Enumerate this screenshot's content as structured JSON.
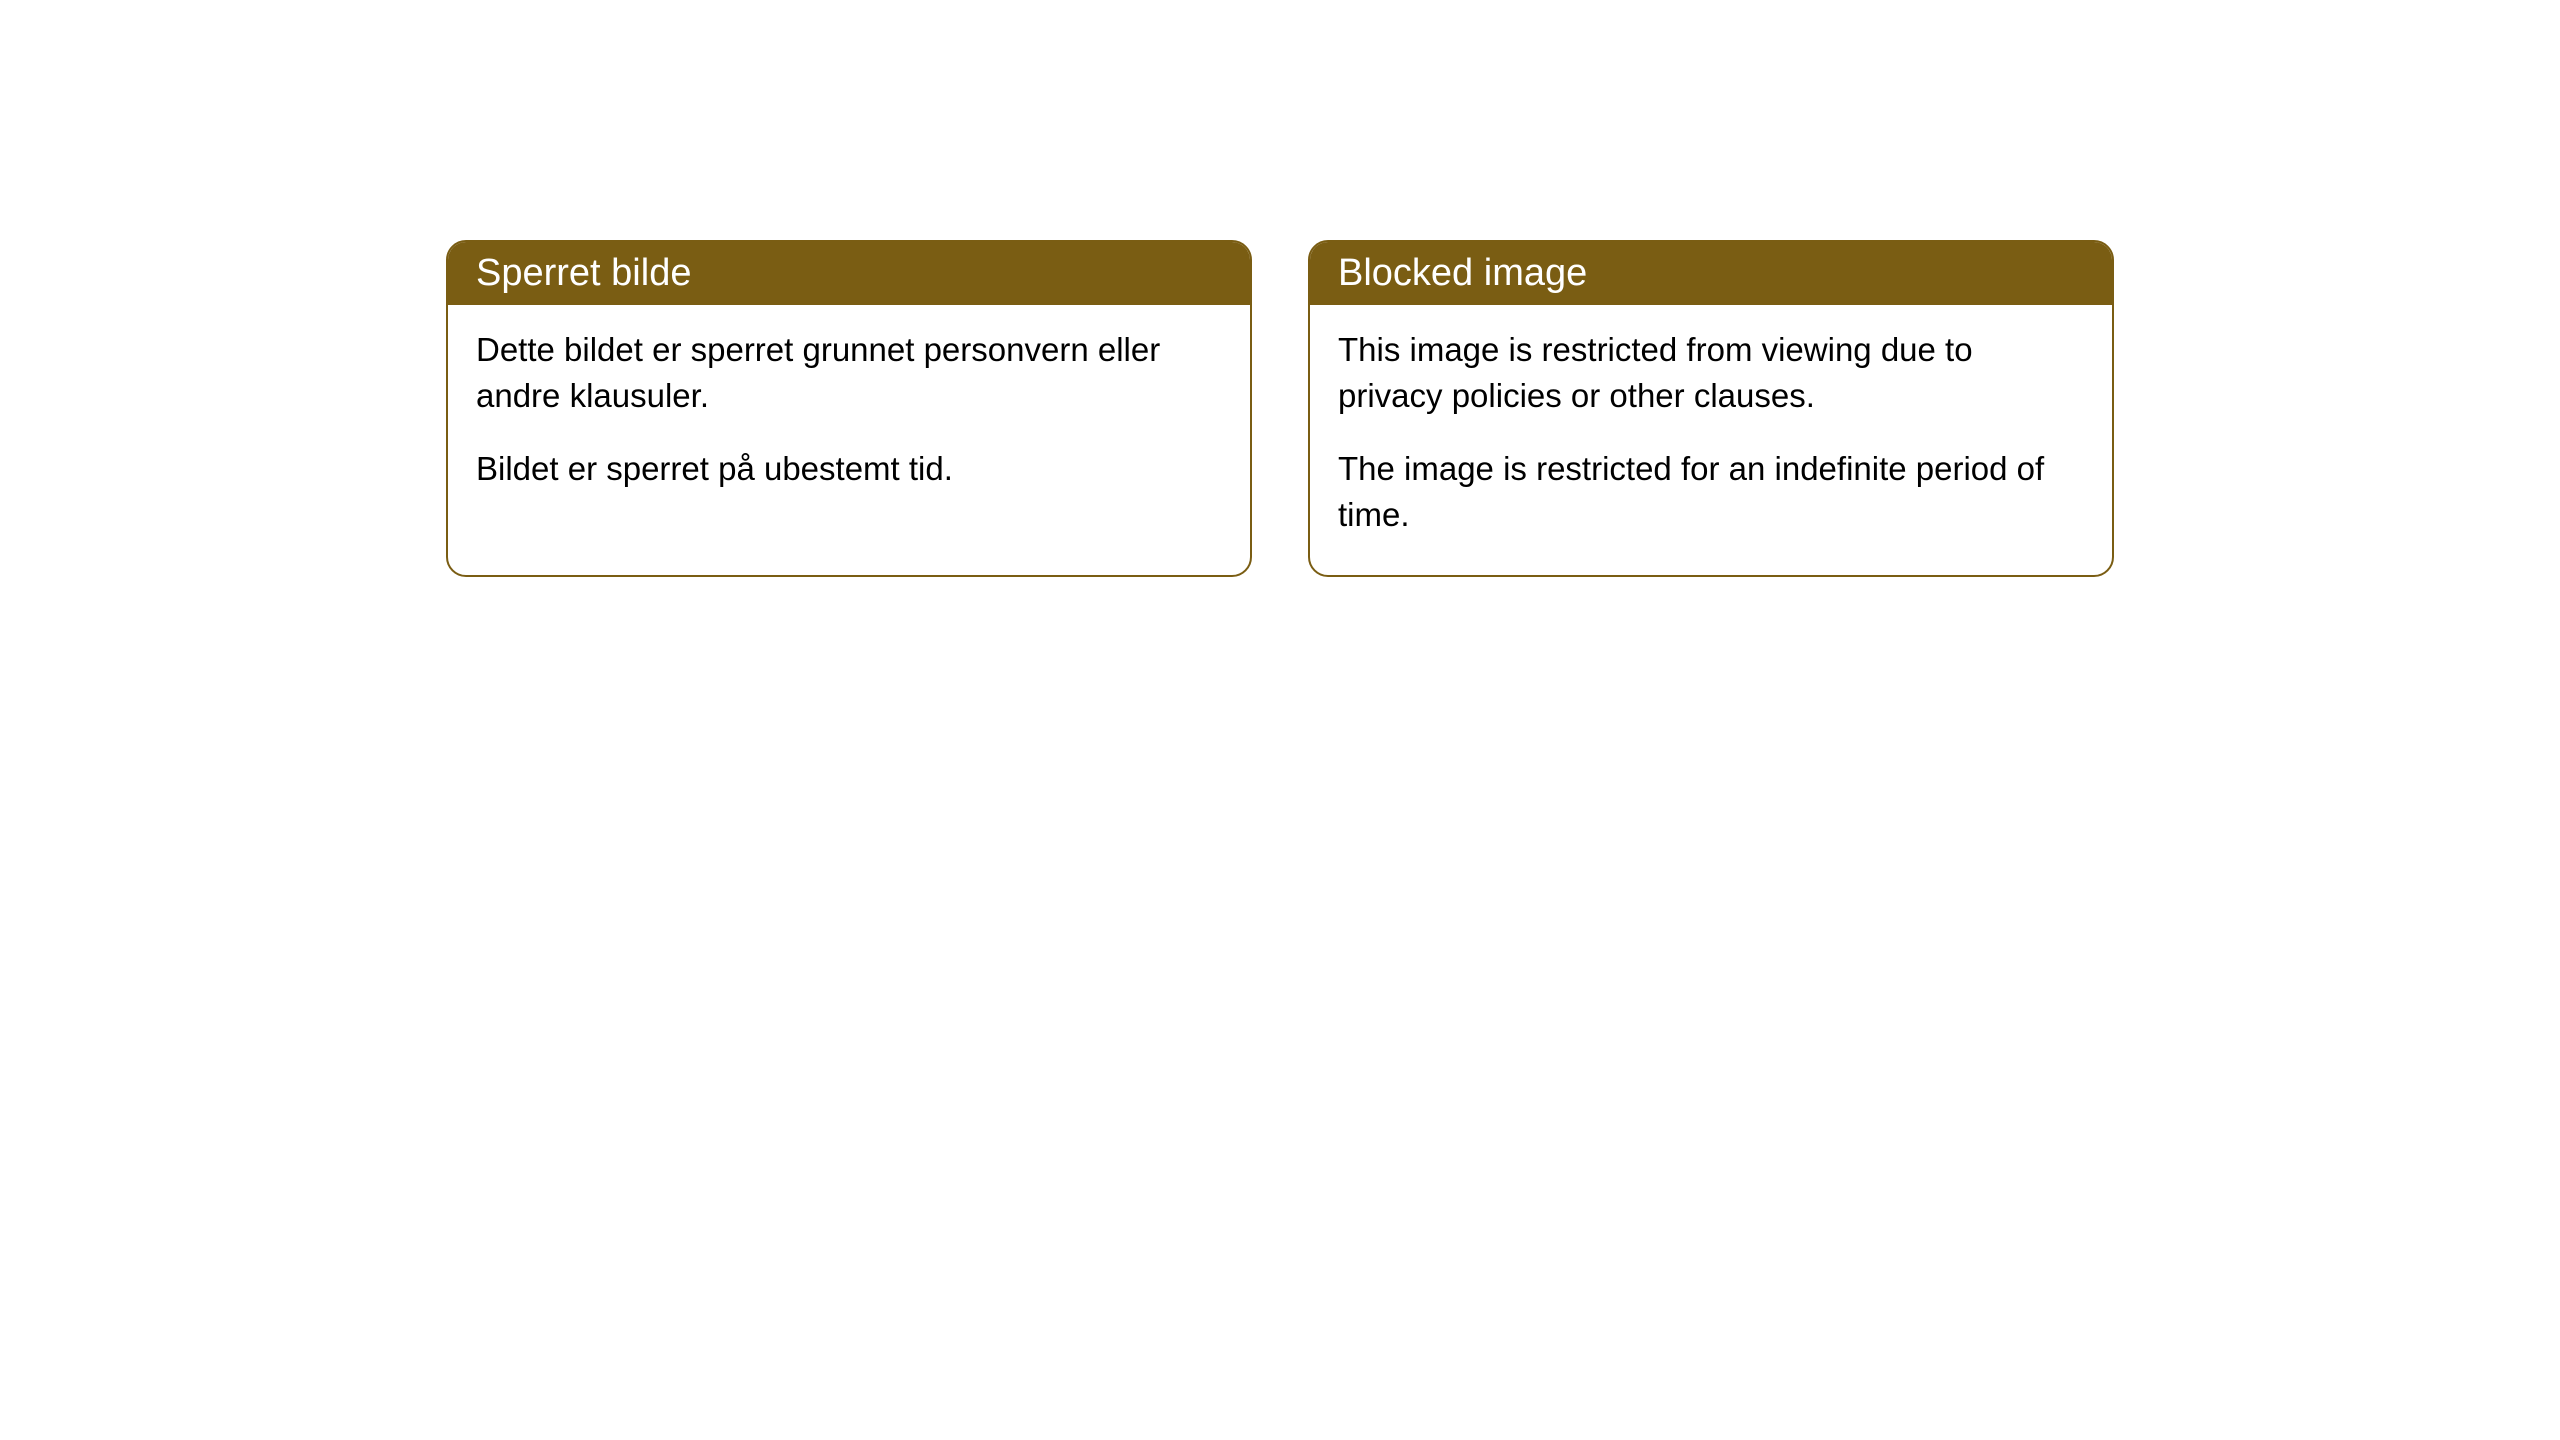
{
  "cards": [
    {
      "title": "Sperret bilde",
      "paragraph1": "Dette bildet er sperret grunnet personvern eller andre klausuler.",
      "paragraph2": "Bildet er sperret på ubestemt tid."
    },
    {
      "title": "Blocked image",
      "paragraph1": "This image is restricted from viewing due to privacy policies or other clauses.",
      "paragraph2": "The image is restricted for an indefinite period of time."
    }
  ],
  "style": {
    "header_background": "#7a5d13",
    "header_text_color": "#ffffff",
    "border_color": "#7a5d13",
    "body_text_color": "#000000",
    "card_background": "#ffffff",
    "page_background": "#ffffff",
    "border_radius": 20,
    "header_fontsize": 38,
    "body_fontsize": 33
  }
}
